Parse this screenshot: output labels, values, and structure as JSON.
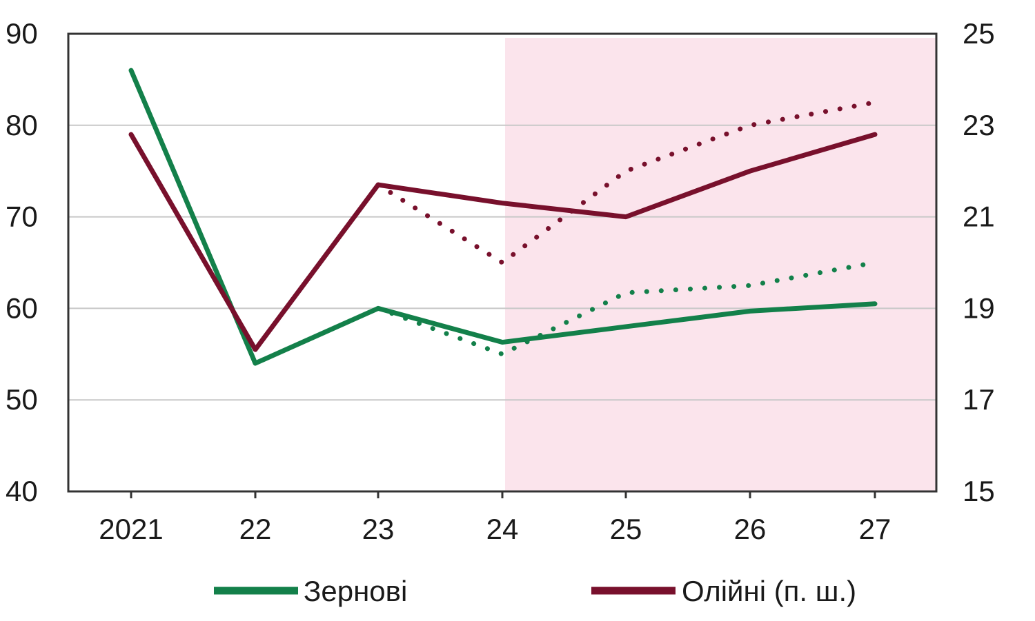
{
  "chart_data": {
    "type": "line",
    "categories": [
      "2021",
      "22",
      "23",
      "24",
      "25",
      "26",
      "27"
    ],
    "forecast_shading_from_category": "24",
    "forecast_shading_color": "#fbe4ec",
    "grid": true,
    "legend_placement": "bottom",
    "left_axis": {
      "ylim": [
        40,
        90
      ],
      "ticks": [
        "90",
        "80",
        "70",
        "60",
        "50",
        "40"
      ]
    },
    "right_axis": {
      "ylim": [
        15,
        25
      ],
      "ticks": [
        "25",
        "23",
        "21",
        "19",
        "17",
        "15"
      ]
    },
    "series": [
      {
        "name": "Зернові",
        "axis": "left",
        "style": "solid",
        "color": "#13804a",
        "values": [
          86,
          54,
          60,
          56.3,
          58,
          59.7,
          60.5
        ]
      },
      {
        "axis": "left",
        "style": "dotted",
        "color": "#13804a",
        "values": [
          null,
          null,
          60,
          55,
          61.7,
          62.5,
          65
        ]
      },
      {
        "name": "Олійні (п. ш.)",
        "axis": "right",
        "style": "solid",
        "color": "#78102c",
        "values": [
          22.8,
          18.1,
          21.7,
          21.3,
          21,
          22,
          22.8
        ]
      },
      {
        "axis": "right",
        "style": "dotted",
        "color": "#78102c",
        "values": [
          null,
          null,
          21.7,
          20,
          22,
          23,
          23.5
        ]
      }
    ]
  },
  "legend": {
    "items": [
      {
        "label": "Зернові",
        "color": "#13804a"
      },
      {
        "label": "Олійні (п. ш.)",
        "color": "#78102c"
      }
    ]
  }
}
